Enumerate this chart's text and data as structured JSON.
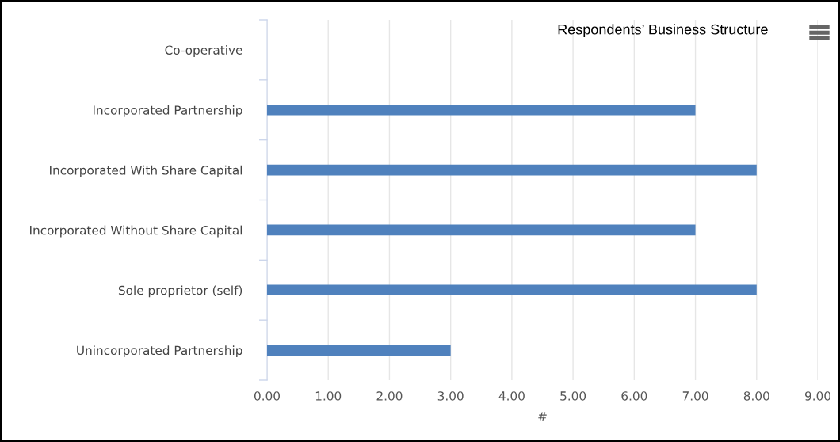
{
  "chart_data": {
    "type": "bar",
    "orientation": "horizontal",
    "title": "Respondents’ Business Structure",
    "xlabel": "#",
    "categories": [
      "Co-operative",
      "Incorporated Partnership",
      "Incorporated With Share Capital",
      "Incorporated Without Share Capital",
      "Sole proprietor (self)",
      "Unincorporated Partnership"
    ],
    "values": [
      0,
      7,
      8,
      7,
      8,
      3
    ],
    "color": "#4f81bd",
    "xlim": [
      0,
      9
    ],
    "xticks": [
      {
        "value": 0,
        "label": "0.00"
      },
      {
        "value": 1,
        "label": "1.00"
      },
      {
        "value": 2,
        "label": "2.00"
      },
      {
        "value": 3,
        "label": "3.00"
      },
      {
        "value": 4,
        "label": "4.00"
      },
      {
        "value": 5,
        "label": "5.00"
      },
      {
        "value": 6,
        "label": "6.00"
      },
      {
        "value": 7,
        "label": "7.00"
      },
      {
        "value": 8,
        "label": "8.00"
      },
      {
        "value": 9,
        "label": "9.00"
      }
    ],
    "grid": "x"
  }
}
